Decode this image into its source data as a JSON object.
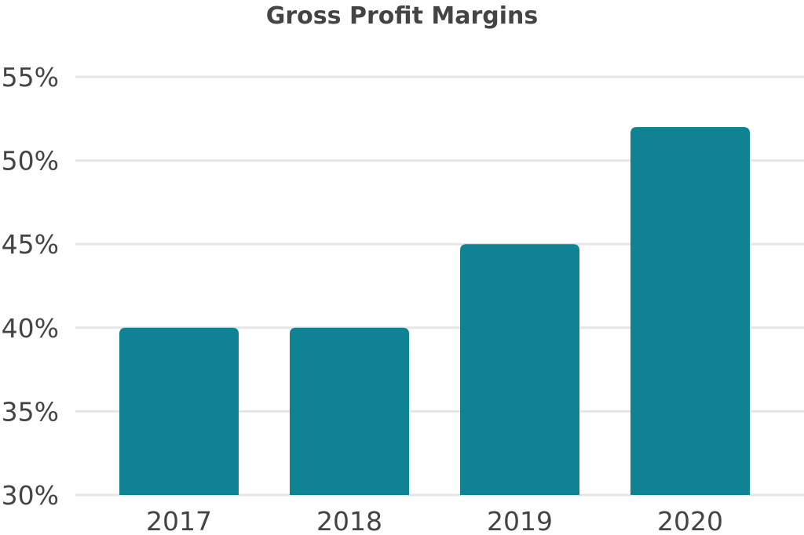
{
  "chart_data": {
    "type": "bar",
    "title": "Gross Profit Margins",
    "xlabel": "",
    "ylabel": "",
    "categories": [
      "2017",
      "2018",
      "2019",
      "2020"
    ],
    "values": [
      40,
      40,
      45,
      52
    ],
    "value_unit": "%",
    "ylim": [
      30,
      55
    ],
    "yticks": [
      30,
      35,
      40,
      45,
      50,
      55
    ],
    "ytick_labels": [
      "30%",
      "35%",
      "40%",
      "45%",
      "50%",
      "55%"
    ],
    "grid": true,
    "legend": "none",
    "bar_color": "#0f8293"
  }
}
